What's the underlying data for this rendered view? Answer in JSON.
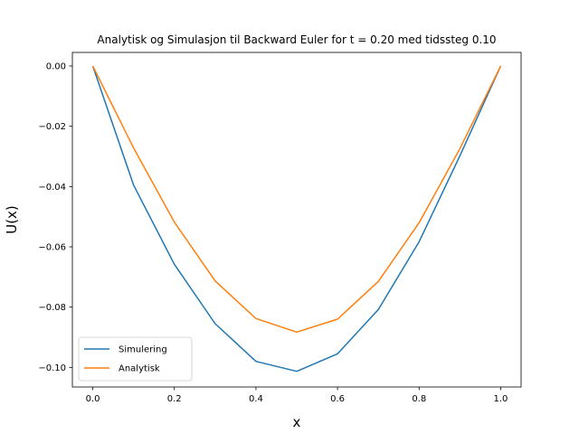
{
  "chart_data": {
    "type": "line",
    "title": "Analytisk og Simulasjon til Backward Euler for t = 0.20 med tidssteg 0.10",
    "xlabel": "x",
    "ylabel": "U(x)",
    "xlim": [
      -0.05,
      1.05
    ],
    "ylim": [
      -0.1065,
      0.0045
    ],
    "x_ticks": [
      "0.0",
      "0.2",
      "0.4",
      "0.6",
      "0.8",
      "1.0"
    ],
    "x_tick_values": [
      0.0,
      0.2,
      0.4,
      0.6,
      0.8,
      1.0
    ],
    "y_ticks": [
      "0.00",
      "−0.02",
      "−0.04",
      "−0.06",
      "−0.08",
      "−0.10"
    ],
    "y_tick_values": [
      0.0,
      -0.02,
      -0.04,
      -0.06,
      -0.08,
      -0.1
    ],
    "grid": false,
    "legend": "lower-left",
    "x": [
      0.0,
      0.1,
      0.2,
      0.3,
      0.4,
      0.5,
      0.6,
      0.7,
      0.8,
      0.9,
      1.0
    ],
    "series": [
      {
        "name": "Simulering",
        "color": "#1f77b4",
        "values": [
          0.0,
          -0.0395,
          -0.0658,
          -0.0855,
          -0.098,
          -0.1013,
          -0.0955,
          -0.0808,
          -0.0583,
          -0.0298,
          0.0
        ]
      },
      {
        "name": "Analytisk",
        "color": "#ff7f0e",
        "values": [
          0.0,
          -0.0272,
          -0.0518,
          -0.0713,
          -0.0838,
          -0.0883,
          -0.084,
          -0.0715,
          -0.052,
          -0.0274,
          0.0
        ]
      }
    ]
  }
}
